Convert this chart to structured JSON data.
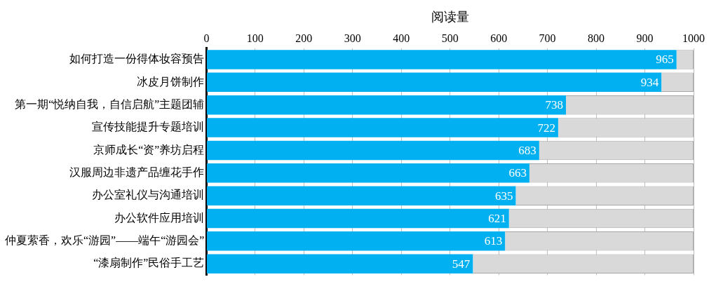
{
  "chart_data": {
    "type": "bar",
    "orientation": "horizontal",
    "stacked": true,
    "xlabel": "阅读量",
    "categories": [
      "如何打造一份得体妆容预告",
      "冰皮月饼制作",
      "第一期“悦纳自我，自信启航”主题团辅",
      "宣传技能提升专题培训",
      "京师成长“资”养坊启程",
      "汉服周边非遗产品缠花手作",
      "办公室礼仪与沟通培训",
      "办公软件应用培训",
      "仲夏萦香，欢乐“游园”——端午“游园会”",
      "“漆扇制作”民俗手工艺"
    ],
    "series": [
      {
        "color": "#00b0f0",
        "values": [
          965,
          934,
          738,
          722,
          683,
          663,
          635,
          621,
          613,
          547
        ],
        "value_labels": [
          "965",
          "934",
          "738",
          "722",
          "683",
          "663",
          "635",
          "621",
          "613",
          "547"
        ]
      },
      {
        "color": "#d9d9d9",
        "values": [
          35,
          66,
          262,
          278,
          317,
          337,
          365,
          379,
          387,
          453
        ]
      }
    ],
    "xlim": [
      0,
      1000
    ],
    "xticks": [
      0,
      100,
      200,
      300,
      400,
      500,
      600,
      700,
      800,
      900,
      {
        "value": 1000,
        "label": "1000"
      }
    ],
    "grid": "x",
    "legend": false
  }
}
